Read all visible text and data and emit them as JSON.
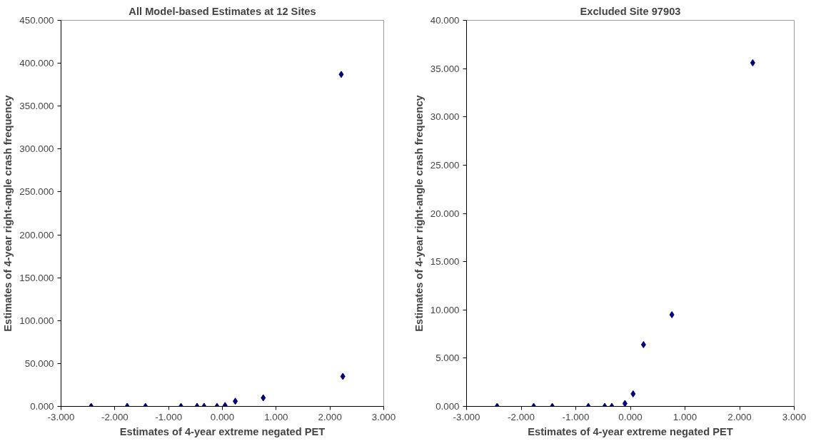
{
  "chart_data": [
    {
      "type": "scatter",
      "title": "All Model-based Estimates at 12 Sites",
      "xlabel": "Estimates of 4-year extreme negated PET",
      "ylabel": "Estimates of 4-year right-angle crash frequency",
      "marker": "diamond",
      "grid": false,
      "series": [
        {
          "color": "#000080",
          "x": [
            -2.44,
            -1.77,
            -1.43,
            -0.77,
            -0.47,
            -0.34,
            -0.1,
            0.05,
            0.24,
            0.76,
            2.24,
            2.21
          ],
          "values": [
            0,
            0,
            0,
            0,
            0,
            0,
            0,
            1,
            6,
            10,
            35,
            387
          ]
        }
      ],
      "xlim": [
        -3,
        3
      ],
      "xticks": [
        {
          "value": -3,
          "label": "-3.000"
        },
        {
          "value": -2,
          "label": "-2.000"
        },
        {
          "value": -1,
          "label": "-1.000"
        },
        {
          "value": 0,
          "label": "0.000"
        },
        {
          "value": 1,
          "label": "1.000"
        },
        {
          "value": 2,
          "label": "2.000"
        },
        {
          "value": 3,
          "label": "3.000"
        }
      ],
      "ylim": [
        0,
        450
      ],
      "yticks": [
        {
          "value": 0,
          "label": "0.000"
        },
        {
          "value": 50,
          "label": "50.000"
        },
        {
          "value": 100,
          "label": "100.000"
        },
        {
          "value": 150,
          "label": "150.000"
        },
        {
          "value": 200,
          "label": "200.000"
        },
        {
          "value": 250,
          "label": "250.000"
        },
        {
          "value": 300,
          "label": "300.000"
        },
        {
          "value": 350,
          "label": "350.000"
        },
        {
          "value": 400,
          "label": "400.000"
        },
        {
          "value": 450,
          "label": "450.000"
        }
      ]
    },
    {
      "type": "scatter",
      "title": "Excluded Site 97903",
      "xlabel": "Estimates of 4-year extreme negated PET",
      "ylabel": "Estimates of 4-year right-angle crash frequency",
      "marker": "diamond",
      "grid": false,
      "series": [
        {
          "color": "#000080",
          "x": [
            -2.44,
            -1.77,
            -1.43,
            -0.77,
            -0.47,
            -0.34,
            -0.1,
            0.05,
            0.24,
            0.76,
            2.24
          ],
          "values": [
            0,
            0,
            0,
            0,
            0,
            0,
            0.3,
            1.3,
            6.4,
            9.5,
            35.6
          ]
        }
      ],
      "xlim": [
        -3,
        3
      ],
      "xticks": [
        {
          "value": -3,
          "label": "-3.000"
        },
        {
          "value": -2,
          "label": "-2.000"
        },
        {
          "value": -1,
          "label": "-1.000"
        },
        {
          "value": 0,
          "label": "0.000"
        },
        {
          "value": 1,
          "label": "1.000"
        },
        {
          "value": 2,
          "label": "2.000"
        },
        {
          "value": 3,
          "label": "3.000"
        }
      ],
      "ylim": [
        0,
        40
      ],
      "yticks": [
        {
          "value": 0,
          "label": "0.000"
        },
        {
          "value": 5,
          "label": "5.000"
        },
        {
          "value": 10,
          "label": "10.000"
        },
        {
          "value": 15,
          "label": "15.000"
        },
        {
          "value": 20,
          "label": "20.000"
        },
        {
          "value": 25,
          "label": "25.000"
        },
        {
          "value": 30,
          "label": "30.000"
        },
        {
          "value": 35,
          "label": "35.000"
        },
        {
          "value": 40,
          "label": "40.000"
        }
      ]
    }
  ]
}
